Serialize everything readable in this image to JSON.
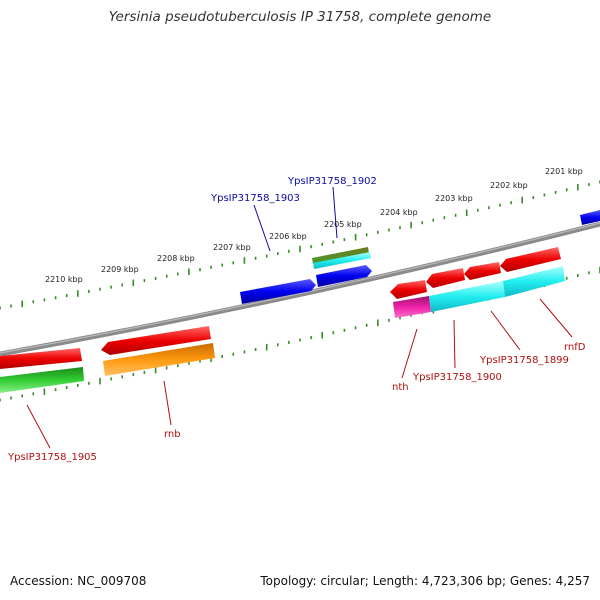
{
  "title": "Yersinia pseudotuberculosis IP 31758, complete genome",
  "footer": {
    "accession": "Accession: NC_009708",
    "summary": "Topology: circular; Length: 4,723,306 bp; Genes: 4,257"
  },
  "colors": {
    "backbone": "#8a8a8a",
    "tick": "#3a8a2a",
    "forward_label": "#0a0aa8",
    "reverse_label": "#b01010"
  },
  "ruler": {
    "labels": [
      "2201 kbp",
      "2202 kbp",
      "2203 kbp",
      "2204 kbp",
      "2205 kbp",
      "2206 kbp",
      "2207 kbp",
      "2208 kbp",
      "2209 kbp",
      "2210 kbp"
    ]
  },
  "gene_labels": {
    "forward": [
      "YpsIP31758_1902",
      "YpsIP31758_1903"
    ],
    "reverse": [
      "rnfD",
      "YpsIP31758_1899",
      "YpsIP31758_1900",
      "nth",
      "rnb",
      "YpsIP31758_1905"
    ]
  }
}
